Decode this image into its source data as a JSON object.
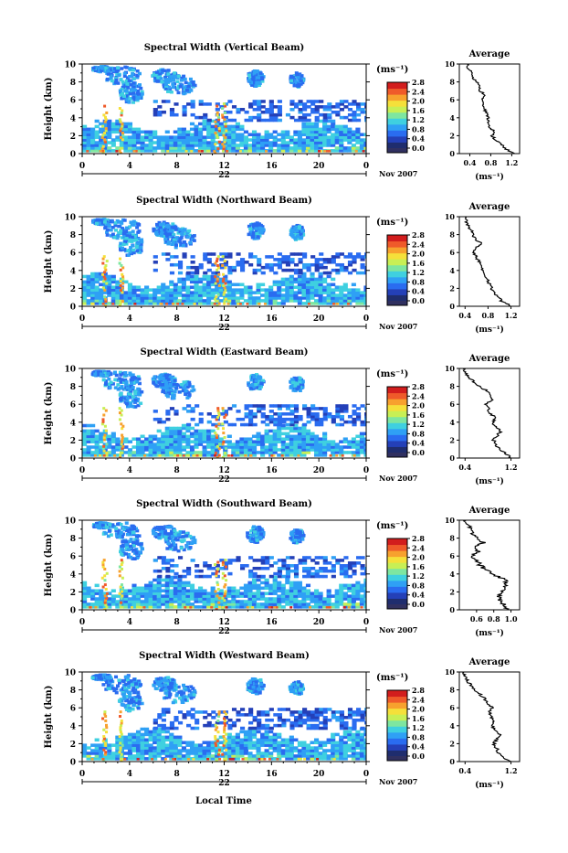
{
  "figure": {
    "x_axis_title": "Local Time",
    "date_label": "Nov 2007",
    "day_label": "22",
    "side_panel_title": "Average",
    "colorbar_unit": "(ms⁻¹)",
    "side_x_unit": "(ms⁻¹)"
  },
  "colors": {
    "colormap": [
      "#1f2d6e",
      "#2440b8",
      "#2a6cf0",
      "#2fa0f5",
      "#3fd0e0",
      "#7ee6a0",
      "#c8ef55",
      "#f5e03a",
      "#f7a12e",
      "#ef5a2a",
      "#d21d1d"
    ],
    "under": "#303060"
  },
  "chart_data": [
    {
      "type": "heatmap",
      "title": "Spectral Width (Vertical Beam)",
      "ylabel": "Height (km)",
      "xlim": [
        0,
        24
      ],
      "ylim": [
        0,
        10
      ],
      "x_ticks": [
        "0",
        "4",
        "8",
        "12",
        "16",
        "20",
        "0"
      ],
      "y_ticks": [
        "0",
        "2",
        "4",
        "6",
        "8",
        "10"
      ],
      "colorbar": {
        "ticks": [
          "0.0",
          "0.4",
          "0.8",
          "1.2",
          "1.6",
          "2.0",
          "2.4",
          "2.8"
        ],
        "range": [
          0,
          2.8
        ]
      },
      "profile": {
        "title": "Average",
        "xlim": [
          0.2,
          1.35
        ],
        "x_ticks": [
          "0.4",
          "0.8",
          "1.2"
        ],
        "height": [
          0,
          0.5,
          1,
          1.5,
          2,
          2.5,
          3,
          3.5,
          4,
          4.5,
          5,
          5.5,
          6,
          6.5,
          7,
          7.5,
          8,
          8.5,
          9,
          9.5,
          10
        ],
        "values": [
          1.25,
          1.1,
          1.0,
          0.9,
          0.82,
          0.85,
          0.78,
          0.76,
          0.74,
          0.72,
          0.68,
          0.66,
          0.62,
          0.7,
          0.6,
          0.58,
          0.52,
          0.46,
          0.42,
          0.38,
          0.35
        ]
      }
    },
    {
      "type": "heatmap",
      "title": "Spectral Width (Northward Beam)",
      "ylabel": "Height (km)",
      "xlim": [
        0,
        24
      ],
      "ylim": [
        0,
        10
      ],
      "x_ticks": [
        "0",
        "4",
        "8",
        "12",
        "16",
        "20",
        "0"
      ],
      "y_ticks": [
        "0",
        "2",
        "4",
        "6",
        "8",
        "10"
      ],
      "colorbar": {
        "ticks": [
          "0.0",
          "0.4",
          "0.8",
          "1.2",
          "1.6",
          "2.0",
          "2.4",
          "2.8"
        ],
        "range": [
          0,
          2.8
        ]
      },
      "profile": {
        "title": "Average",
        "xlim": [
          0.3,
          1.35
        ],
        "x_ticks": [
          "0.4",
          "0.8",
          "1.2"
        ],
        "height": [
          0,
          0.5,
          1,
          1.5,
          2,
          2.5,
          3,
          3.5,
          4,
          4.5,
          5,
          5.5,
          6,
          6.5,
          7,
          7.5,
          8,
          8.5,
          9,
          9.5,
          10
        ],
        "values": [
          1.2,
          1.05,
          0.98,
          0.9,
          0.86,
          0.82,
          0.78,
          0.72,
          0.7,
          0.66,
          0.64,
          0.6,
          0.56,
          0.6,
          0.68,
          0.58,
          0.54,
          0.5,
          0.46,
          0.42,
          0.4
        ]
      }
    },
    {
      "type": "heatmap",
      "title": "Spectral Width (Eastward Beam)",
      "ylabel": "Height (km)",
      "xlim": [
        0,
        24
      ],
      "ylim": [
        0,
        10
      ],
      "x_ticks": [
        "0",
        "4",
        "8",
        "12",
        "16",
        "20",
        "0"
      ],
      "y_ticks": [
        "0",
        "2",
        "4",
        "6",
        "8",
        "10"
      ],
      "colorbar": {
        "ticks": [
          "0.0",
          "0.4",
          "0.8",
          "1.2",
          "1.6",
          "2.0",
          "2.4",
          "2.8"
        ],
        "range": [
          0,
          2.8
        ]
      },
      "profile": {
        "title": "Average",
        "xlim": [
          0.3,
          1.35
        ],
        "x_ticks": [
          "0.4",
          "1.2"
        ],
        "height": [
          0,
          0.5,
          1,
          1.5,
          2,
          2.5,
          3,
          3.5,
          4,
          4.5,
          5,
          5.5,
          6,
          6.5,
          7,
          7.5,
          8,
          8.5,
          9,
          9.5,
          10
        ],
        "values": [
          1.22,
          1.1,
          1.0,
          0.94,
          0.9,
          0.96,
          1.02,
          0.94,
          0.88,
          0.92,
          0.84,
          0.8,
          0.76,
          0.86,
          0.82,
          0.78,
          0.64,
          0.56,
          0.46,
          0.4,
          0.36
        ]
      }
    },
    {
      "type": "heatmap",
      "title": "Spectral Width (Southward Beam)",
      "ylabel": "Height (km)",
      "xlim": [
        0,
        24
      ],
      "ylim": [
        0,
        10
      ],
      "x_ticks": [
        "0",
        "4",
        "8",
        "12",
        "16",
        "20",
        "0"
      ],
      "y_ticks": [
        "0",
        "2",
        "4",
        "6",
        "8",
        "10"
      ],
      "colorbar": {
        "ticks": [
          "0.0",
          "0.4",
          "0.8",
          "1.2",
          "1.6",
          "2.0",
          "2.4",
          "2.8"
        ],
        "range": [
          0,
          2.8
        ]
      },
      "profile": {
        "title": "Average",
        "xlim": [
          0.4,
          1.1
        ],
        "x_ticks": [
          "0.6",
          "0.8",
          "1.0"
        ],
        "height": [
          0,
          0.5,
          1,
          1.5,
          2,
          2.5,
          3,
          3.5,
          4,
          4.5,
          5,
          5.5,
          6,
          6.5,
          7,
          7.5,
          8,
          8.5,
          9,
          9.5,
          10
        ],
        "values": [
          0.95,
          0.92,
          0.88,
          0.86,
          0.9,
          0.92,
          0.96,
          0.9,
          0.78,
          0.7,
          0.64,
          0.6,
          0.56,
          0.62,
          0.58,
          0.68,
          0.6,
          0.55,
          0.52,
          0.5,
          0.48
        ]
      }
    },
    {
      "type": "heatmap",
      "title": "Spectral Width (Westward Beam)",
      "ylabel": "Height (km)",
      "xlim": [
        0,
        24
      ],
      "ylim": [
        0,
        10
      ],
      "x_ticks": [
        "0",
        "4",
        "8",
        "12",
        "16",
        "20",
        "0"
      ],
      "y_ticks": [
        "0",
        "2",
        "4",
        "6",
        "8",
        "10"
      ],
      "colorbar": {
        "ticks": [
          "0.0",
          "0.4",
          "0.8",
          "1.2",
          "1.6",
          "2.0",
          "2.4",
          "2.8"
        ],
        "range": [
          0,
          2.8
        ]
      },
      "profile": {
        "title": "Average",
        "xlim": [
          0.3,
          1.35
        ],
        "x_ticks": [
          "0.4",
          "1.2"
        ],
        "height": [
          0,
          0.5,
          1,
          1.5,
          2,
          2.5,
          3,
          3.5,
          4,
          4.5,
          5,
          5.5,
          6,
          6.5,
          7,
          7.5,
          8,
          8.5,
          9,
          9.5,
          10
        ],
        "values": [
          1.2,
          1.05,
          0.98,
          0.95,
          0.9,
          0.96,
          1.0,
          0.92,
          0.88,
          0.9,
          0.86,
          0.82,
          0.88,
          0.8,
          0.74,
          0.66,
          0.58,
          0.5,
          0.44,
          0.4,
          0.38
        ]
      }
    }
  ]
}
